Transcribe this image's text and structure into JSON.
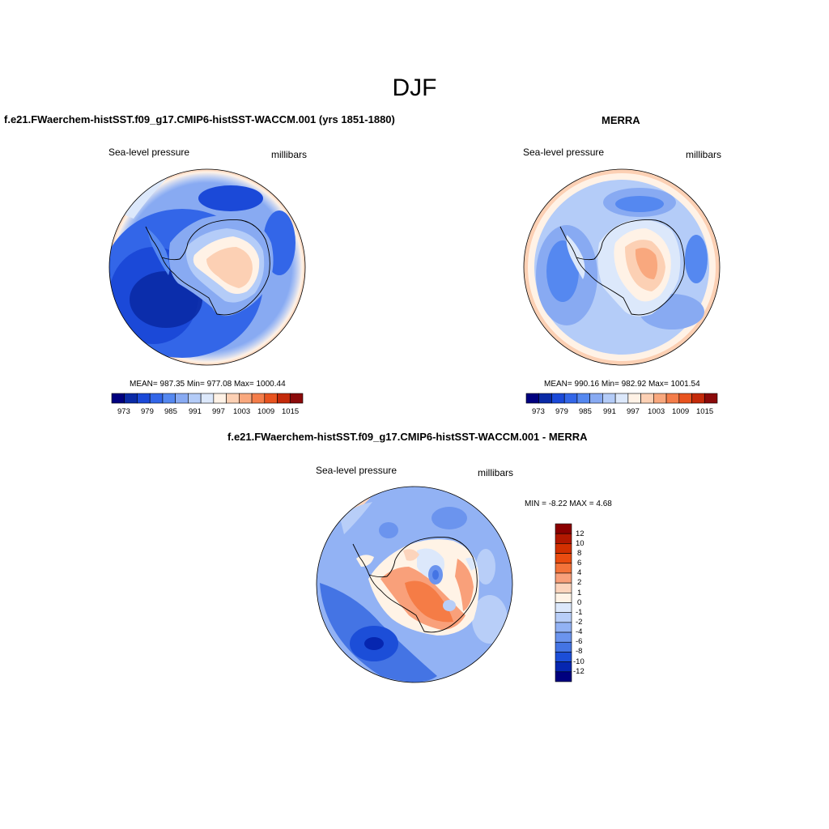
{
  "figure_title": "DJF",
  "panels": [
    {
      "title": "f.e21.FWaerchem-histSST.f09_g17.CMIP6-histSST-WACCM.001 (yrs 1851-1880)",
      "variable": "Sea-level pressure",
      "units": "millibars",
      "stats": "MEAN= 987.35  Min= 977.08  Max= 1000.44",
      "colorbar_ticks": [
        "973",
        "979",
        "985",
        "991",
        "997",
        "1003",
        "1009",
        "1015"
      ]
    },
    {
      "title": "MERRA",
      "variable": "Sea-level pressure",
      "units": "millibars",
      "stats": "MEAN= 990.16  Min= 982.92  Max= 1001.54",
      "colorbar_ticks": [
        "973",
        "979",
        "985",
        "991",
        "997",
        "1003",
        "1009",
        "1015"
      ]
    },
    {
      "title": "f.e21.FWaerchem-histSST.f09_g17.CMIP6-histSST-WACCM.001 - MERRA",
      "variable": "Sea-level pressure",
      "units": "millibars",
      "stats": "MIN =  -8.22 MAX =   4.68",
      "colorbar_ticks": [
        "12",
        "10",
        "8",
        "6",
        "4",
        "2",
        "1",
        "0",
        "-1",
        "-2",
        "-4",
        "-6",
        "-8",
        "-10",
        "-12"
      ]
    }
  ],
  "colormap": [
    "#00007f",
    "#0a2aa6",
    "#1b49d8",
    "#3366e8",
    "#5588f0",
    "#88aaf2",
    "#b4ccf8",
    "#dce8fb",
    "#fff2e6",
    "#fcd0b4",
    "#f9a87e",
    "#f47d4a",
    "#e8531f",
    "#c42a0a",
    "#8b0a0a"
  ],
  "diff_colormap": [
    "#8b0000",
    "#b21800",
    "#d23000",
    "#ea4c10",
    "#f4733a",
    "#f9a07a",
    "#fcd4bc",
    "#fff3e6",
    "#dce8fb",
    "#b8cef8",
    "#92b2f4",
    "#6b94ee",
    "#4474e4",
    "#1c4ed8",
    "#0626b0",
    "#00007f"
  ]
}
